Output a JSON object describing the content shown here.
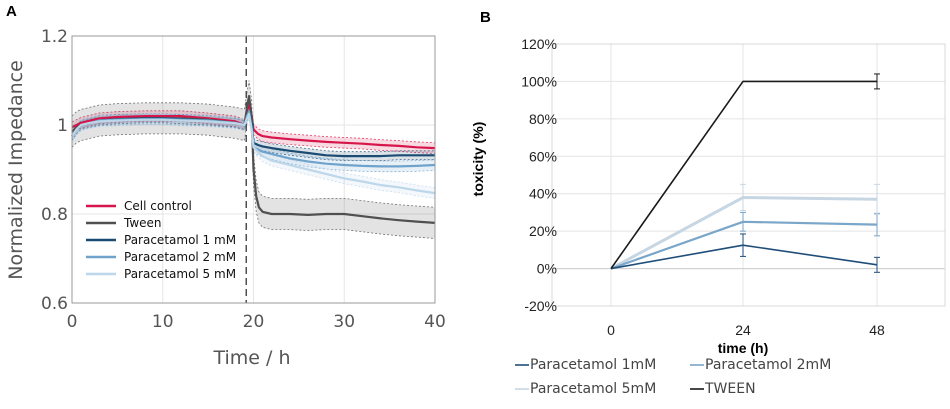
{
  "chart_data": [
    {
      "panel": "A",
      "type": "line",
      "xlabel": "Time / h",
      "ylabel": "Normalized Impedance",
      "xlim": [
        0,
        40
      ],
      "ylim": [
        0.6,
        1.2
      ],
      "xticks": [
        "0",
        "10",
        "20",
        "30",
        "40"
      ],
      "yticks": [
        "0.6",
        "0.8",
        "1",
        "1.2"
      ],
      "xtick_values": [
        0,
        10,
        20,
        30,
        40
      ],
      "ytick_values": [
        0.6,
        0.8,
        1.0,
        1.2
      ],
      "treatment_marker_x": 19.2,
      "grid": true,
      "legend_position": "lower-left",
      "series": [
        {
          "name": "Cell control",
          "color": "#d6164a",
          "x": [
            0,
            0.5,
            1,
            2,
            3,
            5,
            8,
            10,
            12,
            15,
            18,
            19,
            19.3,
            19.5,
            19.8,
            20,
            20.5,
            21,
            22,
            24,
            26,
            28,
            30,
            32,
            34,
            36,
            38,
            40
          ],
          "y": [
            0.995,
            1.0,
            1.005,
            1.01,
            1.015,
            1.018,
            1.02,
            1.02,
            1.02,
            1.015,
            1.008,
            1.0,
            1.03,
            1.05,
            1.02,
            0.99,
            0.98,
            0.975,
            0.972,
            0.968,
            0.965,
            0.962,
            0.96,
            0.958,
            0.955,
            0.953,
            0.95,
            0.948
          ],
          "band": 0.012
        },
        {
          "name": "Tween",
          "color": "#505050",
          "x": [
            0,
            0.5,
            1,
            2,
            3,
            5,
            8,
            10,
            12,
            15,
            18,
            19,
            19.3,
            19.5,
            19.8,
            20,
            20.3,
            20.6,
            21,
            22,
            24,
            26,
            28,
            30,
            32,
            34,
            36,
            38,
            40
          ],
          "y": [
            0.985,
            0.995,
            1.0,
            1.005,
            1.01,
            1.013,
            1.015,
            1.015,
            1.015,
            1.012,
            1.005,
            1.0,
            1.04,
            1.065,
            1.02,
            0.9,
            0.84,
            0.815,
            0.805,
            0.8,
            0.8,
            0.798,
            0.8,
            0.8,
            0.795,
            0.79,
            0.786,
            0.783,
            0.78
          ],
          "band": 0.035
        },
        {
          "name": "Paracetamol 1 mM",
          "color": "#1b4b73",
          "x": [
            0,
            0.5,
            1,
            2,
            3,
            5,
            8,
            10,
            12,
            15,
            18,
            19,
            19.3,
            19.5,
            19.8,
            20,
            20.5,
            21,
            22,
            24,
            26,
            28,
            30,
            32,
            34,
            36,
            38,
            40
          ],
          "y": [
            0.975,
            0.99,
            1.0,
            1.005,
            1.01,
            1.013,
            1.015,
            1.015,
            1.013,
            1.01,
            1.005,
            1.0,
            1.02,
            1.03,
            1.0,
            0.96,
            0.955,
            0.952,
            0.948,
            0.942,
            0.937,
            0.932,
            0.93,
            0.93,
            0.93,
            0.932,
            0.932,
            0.932
          ],
          "band": 0.01
        },
        {
          "name": "Paracetamol 2 mM",
          "color": "#6fa3cc",
          "x": [
            0,
            0.5,
            1,
            2,
            3,
            5,
            8,
            10,
            12,
            15,
            18,
            19,
            19.3,
            19.5,
            19.8,
            20,
            20.5,
            21,
            22,
            24,
            26,
            28,
            30,
            32,
            34,
            36,
            38,
            40
          ],
          "y": [
            0.975,
            0.99,
            1.0,
            1.005,
            1.01,
            1.012,
            1.013,
            1.013,
            1.012,
            1.01,
            1.005,
            1.0,
            1.02,
            1.03,
            0.99,
            0.95,
            0.945,
            0.94,
            0.935,
            0.925,
            0.918,
            0.913,
            0.91,
            0.908,
            0.907,
            0.907,
            0.908,
            0.91
          ],
          "band": 0.012
        },
        {
          "name": "Paracetamol 5 mM",
          "color": "#bcd6ea",
          "x": [
            0,
            0.5,
            1,
            2,
            3,
            5,
            8,
            10,
            12,
            15,
            18,
            19,
            19.3,
            19.5,
            19.8,
            20,
            20.5,
            21,
            22,
            24,
            26,
            28,
            30,
            32,
            34,
            36,
            38,
            40
          ],
          "y": [
            0.975,
            0.99,
            1.0,
            1.005,
            1.008,
            1.01,
            1.012,
            1.012,
            1.01,
            1.008,
            1.004,
            1.0,
            1.015,
            1.025,
            0.99,
            0.95,
            0.94,
            0.93,
            0.92,
            0.91,
            0.9,
            0.89,
            0.88,
            0.873,
            0.865,
            0.86,
            0.853,
            0.847
          ],
          "band": 0.012
        }
      ]
    },
    {
      "panel": "B",
      "type": "line",
      "xlabel": "time (h)",
      "ylabel": "toxicity (%)",
      "categories": [
        "0",
        "24",
        "48"
      ],
      "x": [
        0,
        24,
        48
      ],
      "ylim": [
        -20,
        120
      ],
      "yticks": [
        "-20%",
        "0%",
        "20%",
        "40%",
        "60%",
        "80%",
        "100%",
        "120%"
      ],
      "ytick_values": [
        -20,
        0,
        20,
        40,
        60,
        80,
        100,
        120
      ],
      "grid": true,
      "legend_position": "bottom",
      "series": [
        {
          "name": "Paracetamol 1mM",
          "color": "#1f4e79",
          "values": [
            0,
            12.5,
            2
          ],
          "errors": [
            0,
            6,
            4
          ]
        },
        {
          "name": "Paracetamol 2mM",
          "color": "#7aa6c9",
          "values": [
            0,
            25,
            23.5
          ],
          "errors": [
            0,
            5,
            6
          ]
        },
        {
          "name": "Paracetamol 5mM",
          "color": "#c7d6e3",
          "values": [
            0,
            38,
            37
          ],
          "errors": [
            0,
            7,
            8
          ]
        },
        {
          "name": "TWEEN",
          "color": "#1a1a1a",
          "values": [
            0,
            100,
            100
          ],
          "errors": [
            0,
            0,
            4
          ]
        }
      ]
    }
  ]
}
